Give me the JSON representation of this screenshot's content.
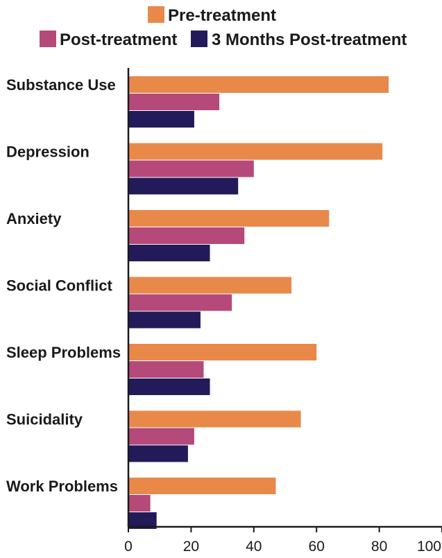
{
  "chart_data": {
    "type": "bar",
    "orientation": "horizontal",
    "categories": [
      "Substance Use",
      "Depression",
      "Anxiety",
      "Social Conflict",
      "Sleep Problems",
      "Suicidality",
      "Work Problems"
    ],
    "series": [
      {
        "name": "Pre-treatment",
        "color": "#E8894A",
        "values": [
          83,
          81,
          64,
          52,
          60,
          55,
          47
        ]
      },
      {
        "name": "Post-treatment",
        "color": "#B5497A",
        "values": [
          29,
          40,
          37,
          33,
          24,
          21,
          7
        ]
      },
      {
        "name": "3 Months Post-treatment",
        "color": "#231A5A",
        "values": [
          21,
          35,
          26,
          23,
          26,
          19,
          9
        ]
      }
    ],
    "x_ticks": [
      "0",
      "20",
      "40",
      "60",
      "80",
      "100"
    ],
    "xlim": [
      0,
      100
    ],
    "grid": false,
    "legend_position": "top"
  }
}
